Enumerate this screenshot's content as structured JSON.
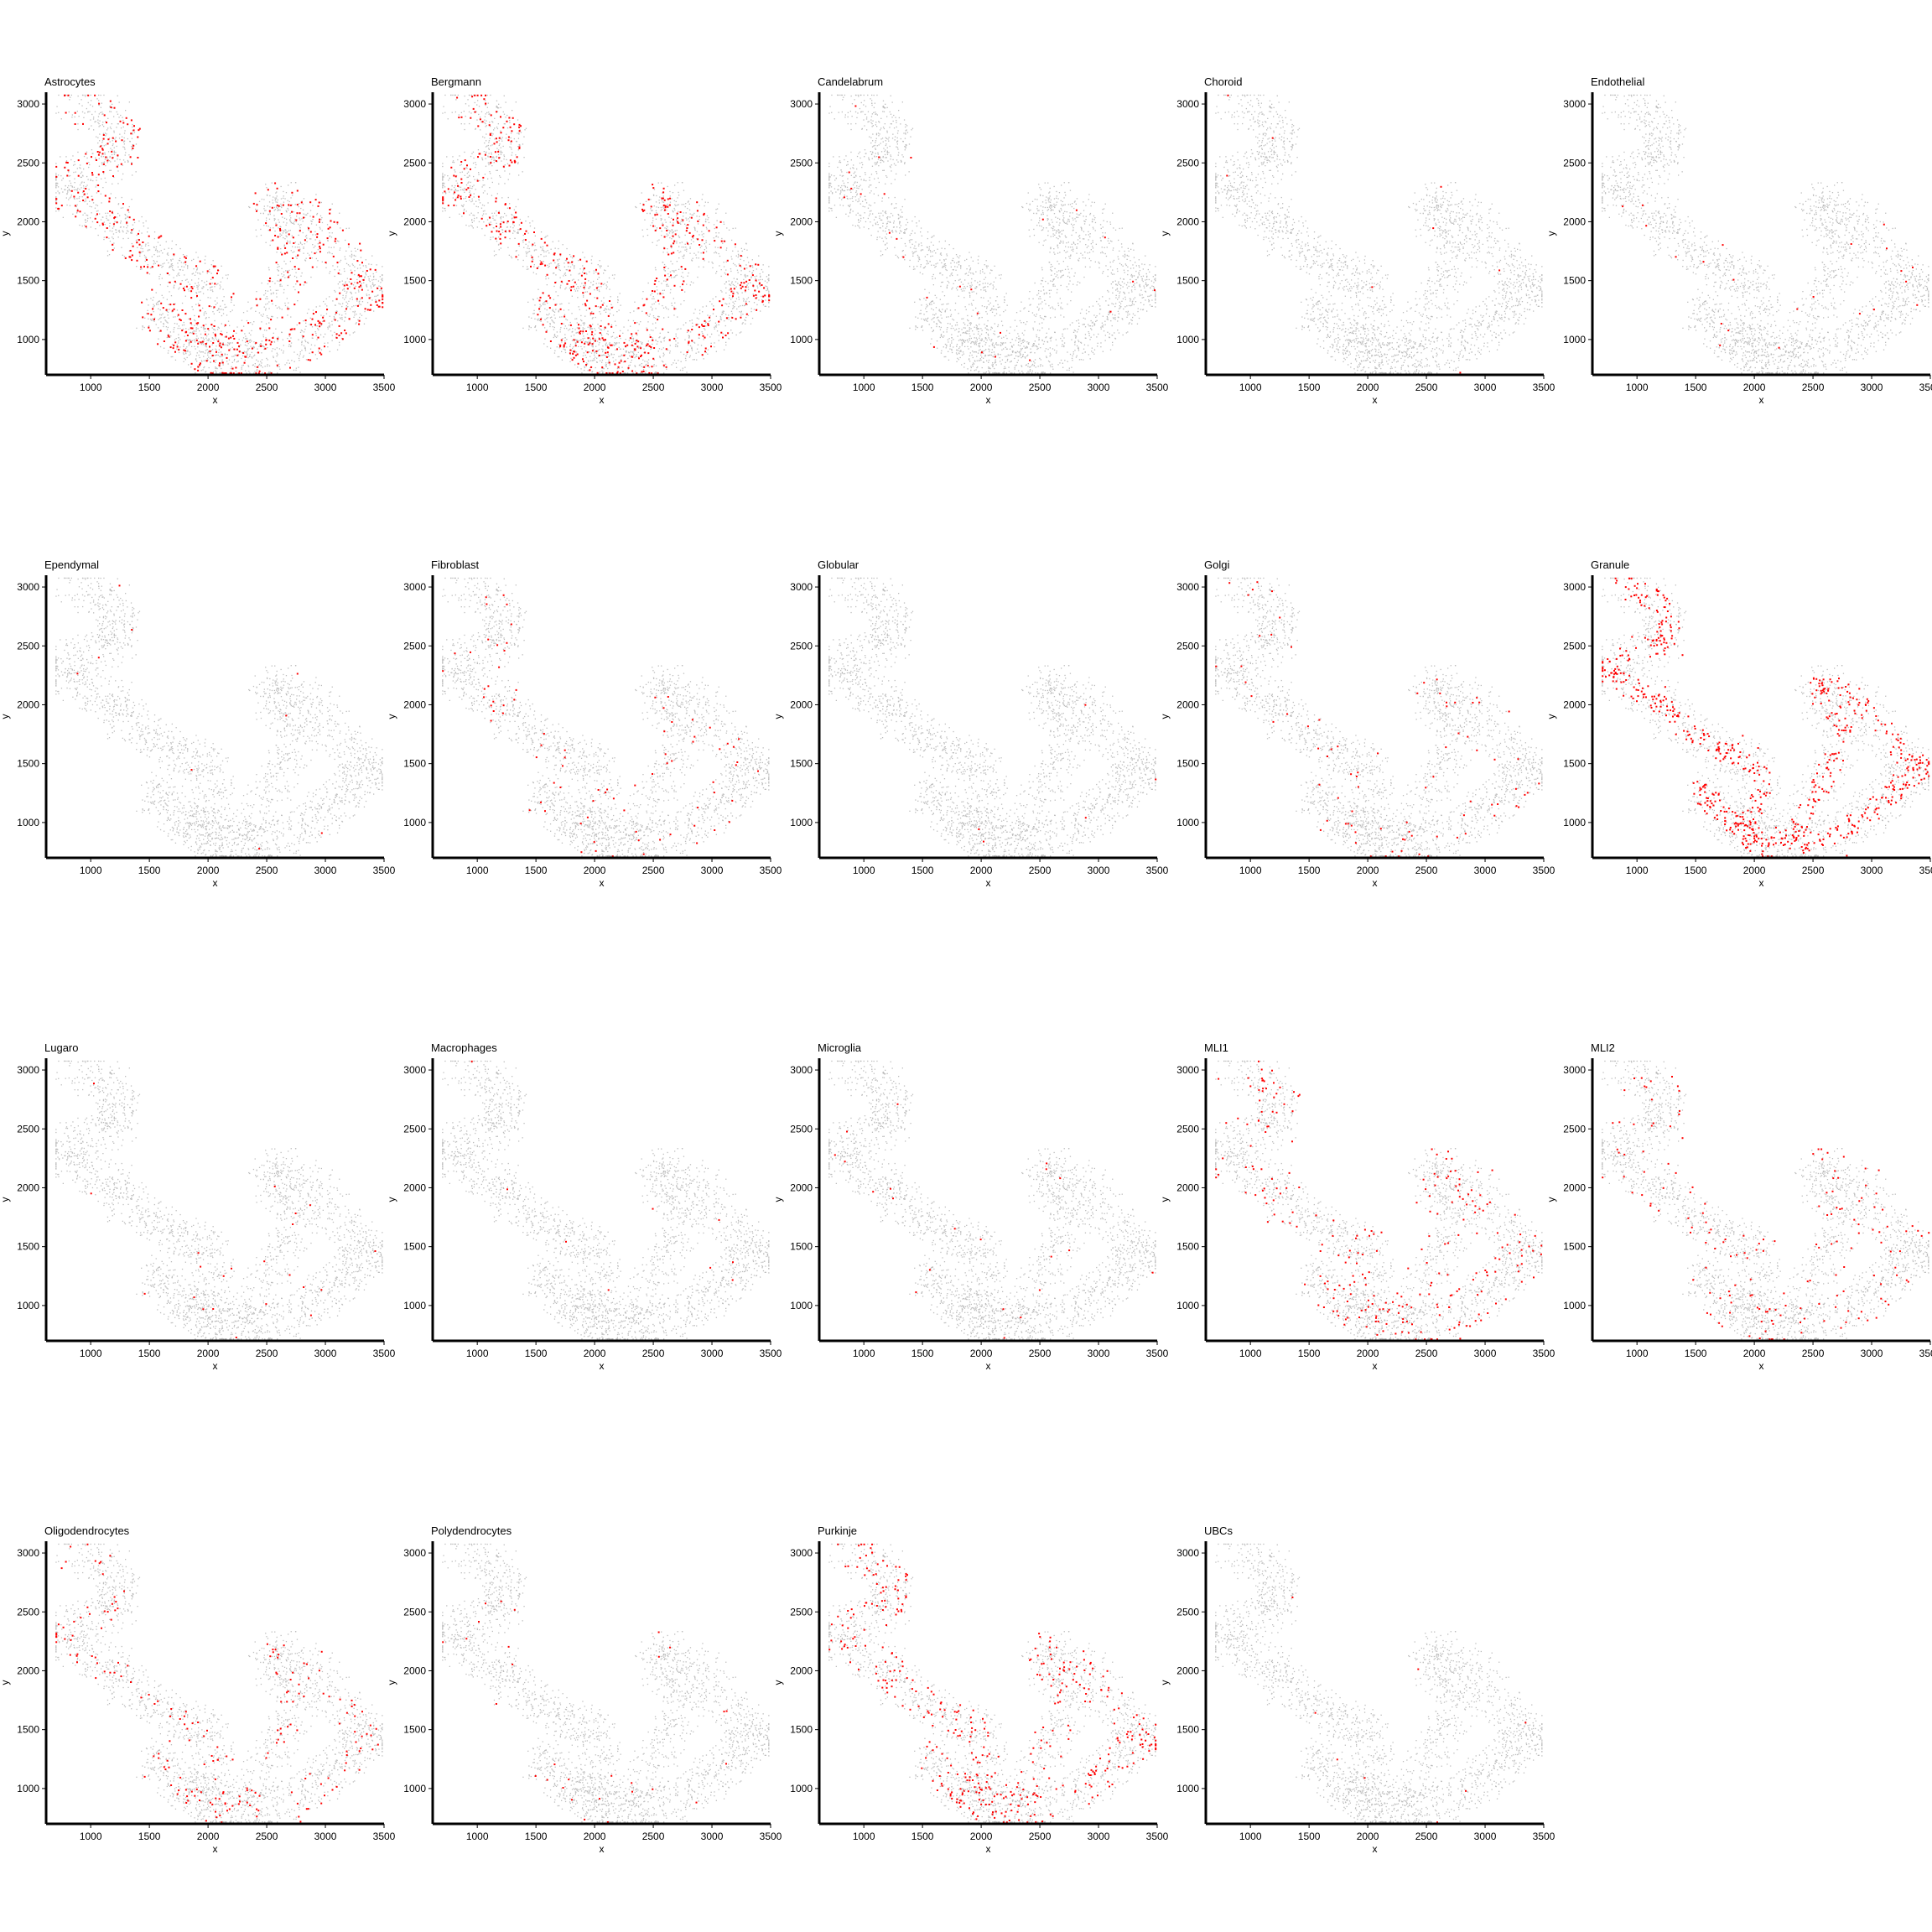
{
  "chart_data": {
    "type": "scatter",
    "xlabel": "x",
    "ylabel": "y",
    "xlim": [
      620,
      3500
    ],
    "ylim": [
      700,
      3100
    ],
    "xticks": [
      "1000",
      "1500",
      "2000",
      "2500",
      "3000",
      "3500"
    ],
    "yticks": [
      "1000",
      "1500",
      "2000",
      "2500",
      "3000"
    ],
    "background_color": "#bdbdbd",
    "highlight_color": "#ff0000",
    "panels": [
      {
        "title": "Astrocytes",
        "pattern": "border",
        "density": 0.45
      },
      {
        "title": "Bergmann",
        "pattern": "line",
        "density": 0.9
      },
      {
        "title": "Candelabrum",
        "pattern": "sparse",
        "density": 0.01
      },
      {
        "title": "Choroid",
        "pattern": "sparse",
        "density": 0.003
      },
      {
        "title": "Endothelial",
        "pattern": "sparse",
        "density": 0.01
      },
      {
        "title": "Ependymal",
        "pattern": "sparse",
        "density": 0.003
      },
      {
        "title": "Fibroblast",
        "pattern": "sparse",
        "density": 0.03
      },
      {
        "title": "Globular",
        "pattern": "sparse",
        "density": 0.005
      },
      {
        "title": "Golgi",
        "pattern": "sparse",
        "density": 0.03
      },
      {
        "title": "Granule",
        "pattern": "band",
        "density": 0.95
      },
      {
        "title": "Lugaro",
        "pattern": "sparse",
        "density": 0.005
      },
      {
        "title": "Macrophages",
        "pattern": "sparse",
        "density": 0.005
      },
      {
        "title": "Microglia",
        "pattern": "sparse",
        "density": 0.006
      },
      {
        "title": "MLI1",
        "pattern": "inner",
        "density": 0.18
      },
      {
        "title": "MLI2",
        "pattern": "inner",
        "density": 0.1
      },
      {
        "title": "Oligodendrocytes",
        "pattern": "core",
        "density": 0.35
      },
      {
        "title": "Polydendrocytes",
        "pattern": "sparse",
        "density": 0.012
      },
      {
        "title": "Purkinje",
        "pattern": "line",
        "density": 0.75
      },
      {
        "title": "UBCs",
        "pattern": "sparse",
        "density": 0.004
      }
    ]
  }
}
